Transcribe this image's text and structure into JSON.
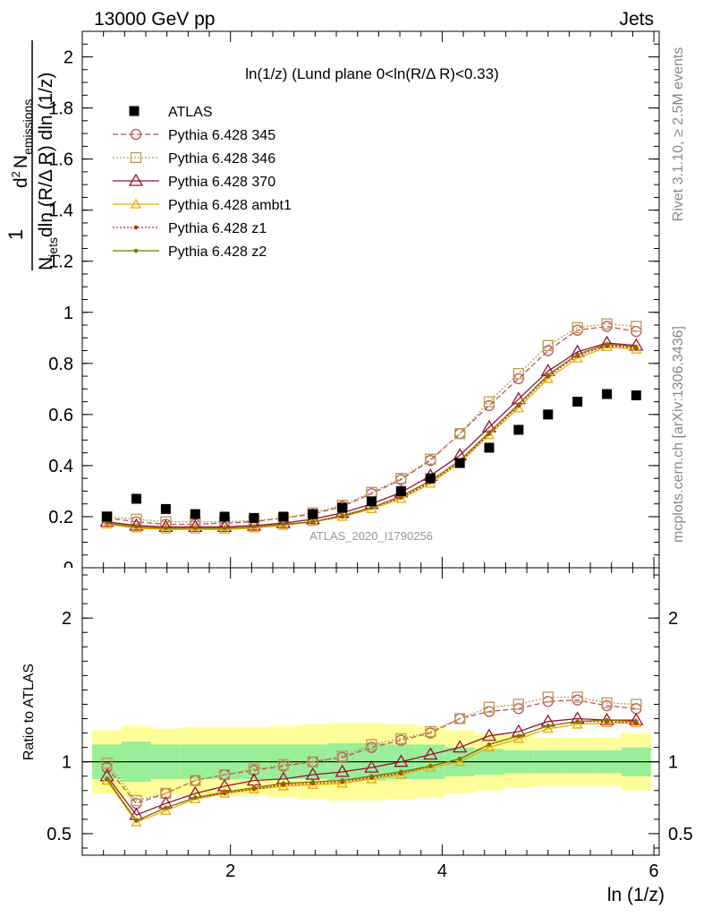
{
  "header": {
    "left": "13000 GeV pp",
    "right": "Jets"
  },
  "side_labels": {
    "rivet": "Rivet 3.1.10, ≥ 2.5M events",
    "mcplots": "mcplots.cern.ch [arXiv:1306.3436]"
  },
  "watermark": "ATLAS_2020_I1790256",
  "colors": {
    "atlas": "#000000",
    "p345": "#bb5555",
    "p346": "#bb9955",
    "p370": "#991133",
    "ambt1": "#eeaa00",
    "z1": "#cc2200",
    "z2": "#777700",
    "band_inner": "#99ee99",
    "band_outer": "#ffff99"
  },
  "chart_data": [
    {
      "type": "scatter",
      "title": "ln(1/z) (Lund plane 0<ln(R/Δ R)<0.33)",
      "ylabel_parts": {
        "one": "1",
        "n": "N",
        "jets": "jets",
        "dln_den": "dln (R/Δ R) dln (1/z)",
        "d2": "d",
        "two": "2",
        "nemis": "N",
        "emissions": "emissions"
      },
      "xlim": [
        0.6,
        6.05
      ],
      "ylim": [
        0,
        2.1
      ],
      "xticks": [
        2,
        4,
        6
      ],
      "yticks": [
        0,
        0.2,
        0.4,
        0.6,
        0.8,
        1,
        1.2,
        1.4,
        1.6,
        1.8,
        2
      ],
      "ytick_labels": [
        "0",
        "0.2",
        "0.4",
        "0.6",
        "0.8",
        "1",
        "1.2",
        "1.4",
        "1.6",
        "1.8",
        "2"
      ],
      "x": [
        0.833,
        1.111,
        1.389,
        1.667,
        1.944,
        2.222,
        2.5,
        2.778,
        3.056,
        3.333,
        3.611,
        3.889,
        4.167,
        4.444,
        4.722,
        5.0,
        5.278,
        5.556,
        5.833
      ],
      "atlas": {
        "name": "ATLAS",
        "values": [
          0.2,
          0.27,
          0.23,
          0.21,
          0.2,
          0.195,
          0.2,
          0.21,
          0.235,
          0.26,
          0.3,
          0.35,
          0.41,
          0.47,
          0.54,
          0.6,
          0.65,
          0.68,
          0.675
        ]
      },
      "series": [
        {
          "name": "Pythia 6.428 345",
          "key": "p345",
          "marker": "circle",
          "dash": "6,3",
          "values": [
            0.195,
            0.18,
            0.17,
            0.17,
            0.175,
            0.18,
            0.195,
            0.21,
            0.24,
            0.29,
            0.345,
            0.42,
            0.525,
            0.635,
            0.74,
            0.85,
            0.93,
            0.945,
            0.925
          ]
        },
        {
          "name": "Pythia 6.428 346",
          "key": "p346",
          "marker": "square",
          "dash": "2,2",
          "values": [
            0.2,
            0.19,
            0.18,
            0.18,
            0.18,
            0.185,
            0.195,
            0.215,
            0.245,
            0.295,
            0.35,
            0.425,
            0.525,
            0.65,
            0.76,
            0.87,
            0.94,
            0.955,
            0.945
          ]
        },
        {
          "name": "Pythia 6.428 370",
          "key": "p370",
          "marker": "triangle",
          "dash": "",
          "values": [
            0.18,
            0.165,
            0.16,
            0.16,
            0.16,
            0.165,
            0.175,
            0.19,
            0.215,
            0.25,
            0.295,
            0.36,
            0.44,
            0.55,
            0.66,
            0.77,
            0.845,
            0.88,
            0.87
          ]
        },
        {
          "name": "Pythia 6.428 ambt1",
          "key": "ambt1",
          "marker": "triangle-small",
          "dash": "",
          "values": [
            0.17,
            0.155,
            0.15,
            0.15,
            0.15,
            0.155,
            0.165,
            0.18,
            0.2,
            0.23,
            0.27,
            0.33,
            0.41,
            0.52,
            0.625,
            0.74,
            0.82,
            0.865,
            0.855
          ]
        },
        {
          "name": "Pythia 6.428 z1",
          "key": "z1",
          "marker": "dot",
          "dash": "2,2",
          "values": [
            0.175,
            0.16,
            0.155,
            0.155,
            0.155,
            0.16,
            0.17,
            0.18,
            0.2,
            0.235,
            0.275,
            0.335,
            0.415,
            0.525,
            0.635,
            0.75,
            0.83,
            0.87,
            0.86
          ]
        },
        {
          "name": "Pythia 6.428 z2",
          "key": "z2",
          "marker": "dot",
          "dash": "",
          "values": [
            0.175,
            0.16,
            0.155,
            0.155,
            0.155,
            0.16,
            0.17,
            0.18,
            0.205,
            0.235,
            0.28,
            0.34,
            0.42,
            0.53,
            0.64,
            0.755,
            0.835,
            0.875,
            0.865
          ]
        }
      ]
    },
    {
      "type": "line",
      "ylabel": "Ratio to ATLAS",
      "xlabel": "ln (1/z)",
      "xlim": [
        0.6,
        6.05
      ],
      "ylim": [
        0.35,
        2.35
      ],
      "yticks": [
        0.5,
        1,
        2
      ],
      "ytick_labels": [
        "0.5",
        "1",
        "2"
      ],
      "xticks": [
        2,
        4,
        6
      ],
      "xtick_labels": [
        "2",
        "4",
        "6"
      ],
      "bin_edges": [
        0.694,
        0.972,
        1.25,
        1.528,
        1.806,
        2.083,
        2.361,
        2.639,
        2.917,
        3.194,
        3.472,
        3.75,
        4.028,
        4.306,
        4.583,
        4.861,
        5.139,
        5.417,
        5.694,
        5.972
      ],
      "band_inner": [
        0.12,
        0.14,
        0.12,
        0.12,
        0.12,
        0.12,
        0.12,
        0.12,
        0.13,
        0.13,
        0.12,
        0.12,
        0.1,
        0.09,
        0.08,
        0.08,
        0.08,
        0.08,
        0.1
      ],
      "band_outer": [
        0.22,
        0.25,
        0.23,
        0.24,
        0.24,
        0.24,
        0.25,
        0.26,
        0.27,
        0.27,
        0.26,
        0.25,
        0.22,
        0.2,
        0.18,
        0.17,
        0.17,
        0.17,
        0.2
      ],
      "series": [
        {
          "key": "p345",
          "values": [
            0.96,
            0.71,
            0.78,
            0.87,
            0.91,
            0.94,
            0.97,
            1.0,
            1.03,
            1.1,
            1.15,
            1.2,
            1.3,
            1.35,
            1.37,
            1.42,
            1.43,
            1.39,
            1.37
          ]
        },
        {
          "key": "p346",
          "values": [
            0.99,
            0.73,
            0.78,
            0.87,
            0.91,
            0.95,
            0.98,
            1.0,
            1.04,
            1.12,
            1.16,
            1.21,
            1.3,
            1.38,
            1.4,
            1.45,
            1.45,
            1.41,
            1.4
          ]
        },
        {
          "key": "p370",
          "values": [
            0.9,
            0.63,
            0.71,
            0.78,
            0.83,
            0.87,
            0.88,
            0.91,
            0.93,
            0.96,
            1.0,
            1.05,
            1.1,
            1.18,
            1.21,
            1.28,
            1.3,
            1.29,
            1.29
          ]
        },
        {
          "key": "ambt1",
          "values": [
            0.87,
            0.58,
            0.66,
            0.74,
            0.78,
            0.81,
            0.83,
            0.84,
            0.85,
            0.88,
            0.91,
            0.96,
            1.0,
            1.1,
            1.16,
            1.23,
            1.26,
            1.27,
            1.27
          ]
        },
        {
          "key": "z1",
          "values": [
            0.88,
            0.59,
            0.68,
            0.75,
            0.78,
            0.81,
            0.84,
            0.85,
            0.86,
            0.89,
            0.92,
            0.97,
            1.02,
            1.12,
            1.18,
            1.25,
            1.28,
            1.28,
            1.27
          ]
        },
        {
          "key": "z2",
          "values": [
            0.88,
            0.59,
            0.68,
            0.75,
            0.79,
            0.82,
            0.85,
            0.86,
            0.87,
            0.9,
            0.93,
            0.97,
            1.02,
            1.12,
            1.18,
            1.25,
            1.28,
            1.29,
            1.28
          ]
        }
      ]
    }
  ]
}
